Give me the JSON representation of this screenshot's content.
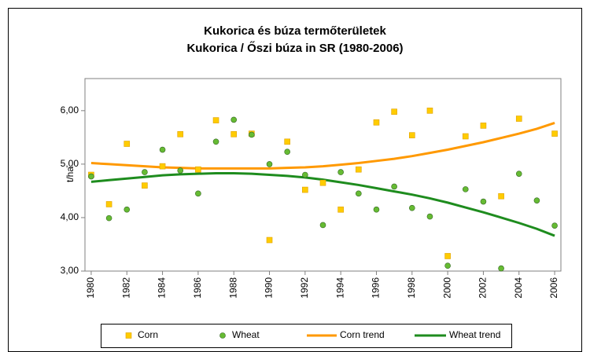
{
  "chart_data": {
    "type": "scatter",
    "title": "Kukorica és búza termőterületek",
    "subtitle": "Kukorica / Őszi búza in SR (1980-2006)",
    "y_label": "t/ha",
    "x": [
      1980,
      1981,
      1982,
      1983,
      1984,
      1985,
      1986,
      1987,
      1988,
      1989,
      1990,
      1991,
      1992,
      1993,
      1994,
      1995,
      1996,
      1997,
      1998,
      1999,
      2000,
      2001,
      2002,
      2003,
      2004,
      2005,
      2006
    ],
    "xlim": [
      1979.65,
      2006.35
    ],
    "xticks": [
      1980,
      1982,
      1984,
      1986,
      1988,
      1990,
      1992,
      1994,
      1996,
      1998,
      2000,
      2002,
      2004,
      2006
    ],
    "ylim": [
      3,
      6.6
    ],
    "yticks": [
      {
        "value": 3,
        "label": "3,00"
      },
      {
        "value": 4,
        "label": "4,00"
      },
      {
        "value": 5,
        "label": "5,00"
      },
      {
        "value": 6,
        "label": "6,00"
      }
    ],
    "grid": false,
    "legend": "bottom",
    "series": [
      {
        "name": "Corn",
        "marker": "square",
        "color": "#FFCC00",
        "values": [
          4.8,
          4.25,
          5.38,
          4.6,
          4.96,
          5.56,
          4.9,
          5.82,
          5.56,
          5.57,
          3.58,
          5.42,
          4.52,
          4.65,
          4.15,
          4.9,
          5.78,
          5.98,
          5.54,
          6.0,
          3.28,
          5.52,
          5.72,
          4.4,
          5.85,
          null,
          5.57
        ]
      },
      {
        "name": "Wheat",
        "marker": "circle",
        "color": "#66BB33",
        "values": [
          4.77,
          3.99,
          4.15,
          4.85,
          5.27,
          4.88,
          4.45,
          5.42,
          5.83,
          5.55,
          5.0,
          5.23,
          4.8,
          3.86,
          4.85,
          4.45,
          4.15,
          4.58,
          4.18,
          4.02,
          3.1,
          4.53,
          4.3,
          3.05,
          4.82,
          4.32,
          3.85
        ]
      },
      {
        "name": "Corn trend",
        "marker": "line",
        "color": "#FF9900",
        "values": [
          5.02,
          5.0,
          4.98,
          4.96,
          4.94,
          4.93,
          4.92,
          4.92,
          4.92,
          4.92,
          4.92,
          4.93,
          4.94,
          4.96,
          4.99,
          5.02,
          5.06,
          5.1,
          5.15,
          5.21,
          5.27,
          5.34,
          5.41,
          5.49,
          5.57,
          5.66,
          5.77
        ]
      },
      {
        "name": "Wheat trend",
        "marker": "line",
        "color": "#1E8C1E",
        "values": [
          4.67,
          4.7,
          4.73,
          4.76,
          4.79,
          4.81,
          4.82,
          4.83,
          4.83,
          4.82,
          4.8,
          4.78,
          4.75,
          4.71,
          4.66,
          4.61,
          4.55,
          4.49,
          4.43,
          4.36,
          4.28,
          4.19,
          4.1,
          4.0,
          3.9,
          3.79,
          3.66
        ]
      }
    ]
  }
}
